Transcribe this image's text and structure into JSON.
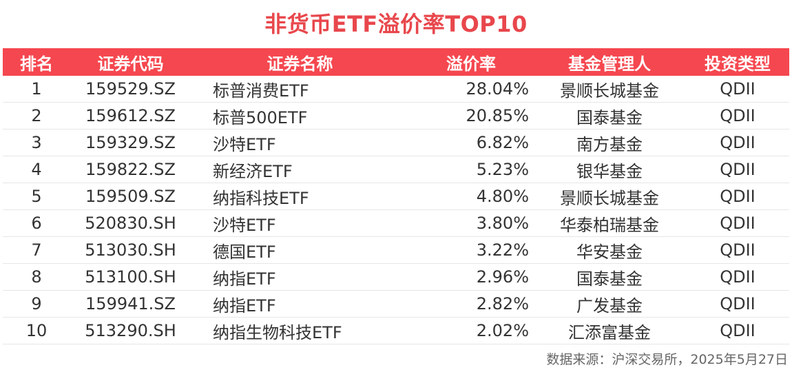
{
  "title": "非货币ETF溢价率TOP10",
  "table": {
    "headers": [
      "排名",
      "证券代码",
      "证券名称",
      "溢价率",
      "基金管理人",
      "投资类型"
    ],
    "rows": [
      {
        "rank": "1",
        "code": "159529.SZ",
        "name": "标普消费ETF",
        "premium": "28.04%",
        "manager": "景顺长城基金",
        "type": "QDII"
      },
      {
        "rank": "2",
        "code": "159612.SZ",
        "name": "标普500ETF",
        "premium": "20.85%",
        "manager": "国泰基金",
        "type": "QDII"
      },
      {
        "rank": "3",
        "code": "159329.SZ",
        "name": "沙特ETF",
        "premium": "6.82%",
        "manager": "南方基金",
        "type": "QDII"
      },
      {
        "rank": "4",
        "code": "159822.SZ",
        "name": "新经济ETF",
        "premium": "5.23%",
        "manager": "银华基金",
        "type": "QDII"
      },
      {
        "rank": "5",
        "code": "159509.SZ",
        "name": "纳指科技ETF",
        "premium": "4.80%",
        "manager": "景顺长城基金",
        "type": "QDII"
      },
      {
        "rank": "6",
        "code": "520830.SH",
        "name": "沙特ETF",
        "premium": "3.80%",
        "manager": "华泰柏瑞基金",
        "type": "QDII"
      },
      {
        "rank": "7",
        "code": "513030.SH",
        "name": "德国ETF",
        "premium": "3.22%",
        "manager": "华安基金",
        "type": "QDII"
      },
      {
        "rank": "8",
        "code": "513100.SH",
        "name": "纳指ETF",
        "premium": "2.96%",
        "manager": "国泰基金",
        "type": "QDII"
      },
      {
        "rank": "9",
        "code": "159941.SZ",
        "name": "纳指ETF",
        "premium": "2.82%",
        "manager": "广发基金",
        "type": "QDII"
      },
      {
        "rank": "10",
        "code": "513290.SH",
        "name": "纳指生物科技ETF",
        "premium": "2.02%",
        "manager": "汇添富基金",
        "type": "QDII"
      }
    ]
  },
  "source": "数据来源：沪深交易所，2025年5月27日",
  "colors": {
    "title": "#e8474c",
    "header_bg": "#f5474f",
    "header_text": "#ffffff",
    "body_text": "#333333",
    "row_divider": "#e6e6e6"
  }
}
